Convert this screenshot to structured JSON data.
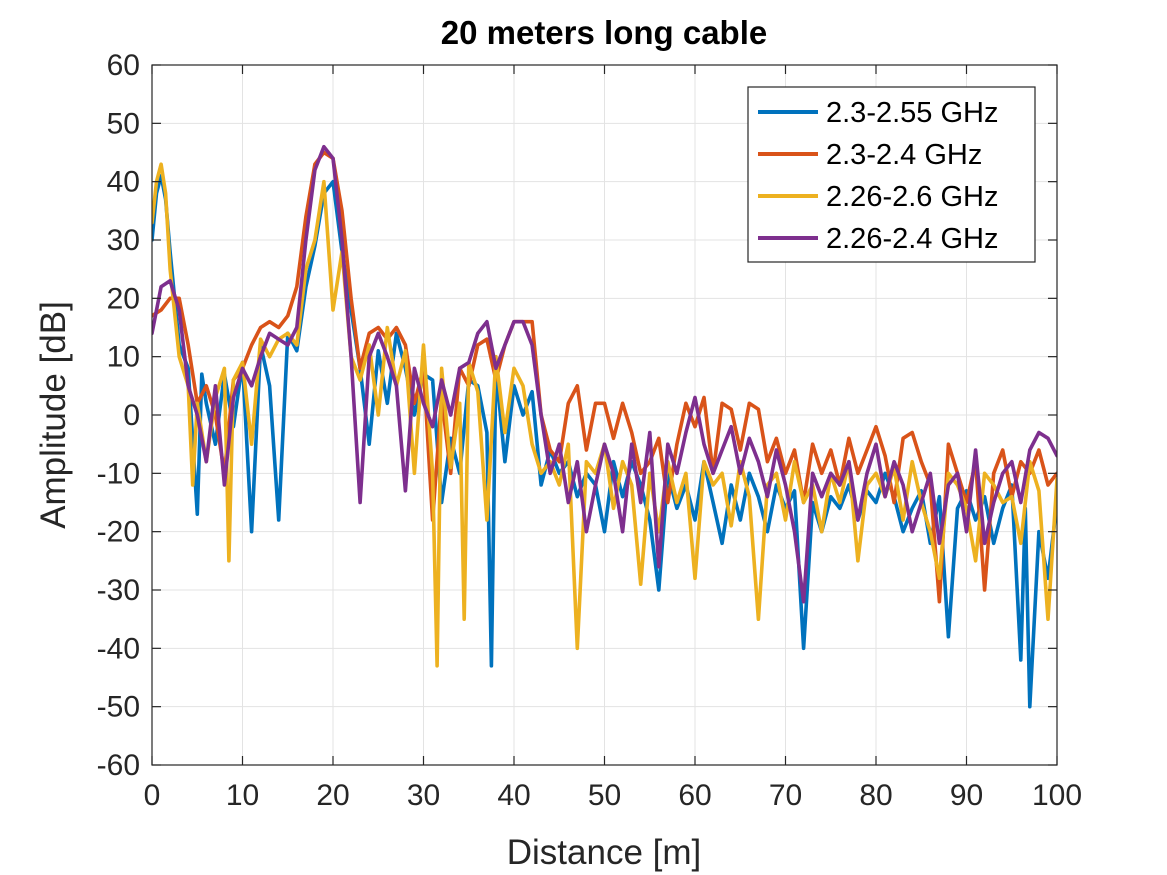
{
  "chart_data": {
    "type": "line",
    "title": "20 meters long cable",
    "xlabel": "Distance [m]",
    "ylabel": "Amplitude [dB]",
    "xlim": [
      0,
      100
    ],
    "ylim": [
      -60,
      60
    ],
    "xticks": [
      0,
      10,
      20,
      30,
      40,
      50,
      60,
      70,
      80,
      90,
      100
    ],
    "yticks": [
      -60,
      -50,
      -40,
      -30,
      -20,
      -10,
      0,
      10,
      20,
      30,
      40,
      50,
      60
    ],
    "grid": true,
    "legend_position": "top-right",
    "series": [
      {
        "name": "2.3-2.55 GHz",
        "color": "#0072BD",
        "x": [
          0,
          0.5,
          1,
          1.5,
          2,
          3,
          4,
          5,
          5.5,
          6,
          7,
          8,
          9,
          10,
          11,
          12,
          13,
          14,
          15,
          16,
          17,
          18,
          19,
          20,
          21,
          22,
          23,
          24,
          25,
          26,
          27,
          28,
          29,
          30,
          31,
          32,
          33,
          34,
          35,
          36,
          37,
          37.5,
          38,
          39,
          40,
          41,
          42,
          43,
          44,
          45,
          46,
          47,
          48,
          49,
          50,
          51,
          52,
          53,
          54,
          55,
          56,
          57,
          58,
          59,
          60,
          61,
          62,
          63,
          64,
          65,
          66,
          67,
          68,
          69,
          70,
          71,
          72,
          73,
          74,
          75,
          76,
          77,
          78,
          79,
          80,
          81,
          82,
          83,
          84,
          85,
          86,
          87,
          88,
          89,
          90,
          91,
          92,
          93,
          94,
          95,
          96,
          96.5,
          97,
          98,
          99,
          100
        ],
        "y": [
          30,
          38,
          41,
          37,
          28,
          12,
          8,
          -17,
          7,
          2,
          -5,
          7,
          -2,
          9,
          -20,
          12,
          5,
          -18,
          14,
          11,
          22,
          29,
          38,
          40,
          28,
          18,
          8,
          -5,
          11,
          2,
          14,
          8,
          0,
          7,
          6,
          -15,
          -4,
          -10,
          6,
          5,
          -3,
          -43,
          8,
          -8,
          5,
          0,
          4,
          -12,
          -6,
          -10,
          -8,
          -14,
          -10,
          -12,
          -20,
          -8,
          -14,
          -8,
          -12,
          -18,
          -30,
          -10,
          -16,
          -12,
          -18,
          -8,
          -15,
          -22,
          -12,
          -18,
          -10,
          -14,
          -20,
          -12,
          -16,
          -13,
          -40,
          -15,
          -20,
          -14,
          -16,
          -12,
          -18,
          -13,
          -15,
          -10,
          -14,
          -20,
          -16,
          -13,
          -22,
          -14,
          -38,
          -16,
          -13,
          -18,
          -14,
          -22,
          -16,
          -12,
          -42,
          -16,
          -50,
          -20,
          -28,
          -15
        ]
      },
      {
        "name": "2.3-2.4 GHz",
        "color": "#D95319",
        "x": [
          0,
          1,
          2,
          3,
          4,
          5,
          6,
          7,
          8,
          9,
          10,
          11,
          12,
          13,
          14,
          15,
          16,
          17,
          18,
          19,
          20,
          21,
          22,
          23,
          24,
          25,
          26,
          27,
          28,
          29,
          30,
          31,
          32,
          33,
          34,
          35,
          36,
          37,
          38,
          39,
          40,
          41,
          42,
          43,
          44,
          45,
          46,
          47,
          48,
          49,
          50,
          51,
          52,
          53,
          54,
          55,
          56,
          57,
          58,
          59,
          60,
          61,
          62,
          63,
          64,
          65,
          66,
          67,
          68,
          69,
          70,
          71,
          72,
          73,
          74,
          75,
          76,
          77,
          78,
          79,
          80,
          81,
          82,
          83,
          84,
          85,
          86,
          87,
          88,
          89,
          90,
          91,
          92,
          93,
          94,
          95,
          96,
          97,
          98,
          99,
          100
        ],
        "y": [
          17,
          18,
          20,
          20,
          12,
          2,
          5,
          0,
          -10,
          6,
          8,
          12,
          15,
          16,
          15,
          17,
          22,
          34,
          43,
          45,
          44,
          35,
          20,
          8,
          14,
          15,
          13,
          15,
          12,
          2,
          8,
          -18,
          3,
          -10,
          8,
          5,
          12,
          13,
          6,
          12,
          16,
          16,
          16,
          0,
          -6,
          -8,
          2,
          5,
          -6,
          2,
          2,
          -4,
          2,
          -3,
          -10,
          -8,
          -4,
          -15,
          -5,
          2,
          -2,
          3,
          -10,
          2,
          1,
          -6,
          2,
          1,
          -8,
          -4,
          -10,
          -6,
          -15,
          -5,
          -10,
          -6,
          -12,
          -4,
          -10,
          -6,
          -2,
          -7,
          -15,
          -4,
          -3,
          -8,
          -12,
          -32,
          -5,
          -10,
          -15,
          -8,
          -30,
          -10,
          -6,
          -14,
          -8,
          -10,
          -6,
          -12,
          -10
        ]
      },
      {
        "name": "2.26-2.6 GHz",
        "color": "#EDB120",
        "x": [
          0,
          0.5,
          1,
          1.5,
          2,
          3,
          4,
          4.5,
          5,
          6,
          7,
          8,
          8.5,
          9,
          10,
          11,
          12,
          13,
          14,
          15,
          16,
          17,
          18,
          19,
          20,
          21,
          22,
          23,
          24,
          25,
          26,
          27,
          28,
          29,
          30,
          31,
          31.5,
          32,
          33,
          34,
          34.5,
          35,
          36,
          37,
          38,
          39,
          40,
          41,
          42,
          43,
          44,
          45,
          46,
          47,
          48,
          49,
          50,
          51,
          52,
          53,
          54,
          55,
          56,
          57,
          58,
          59,
          60,
          61,
          62,
          63,
          64,
          65,
          66,
          67,
          68,
          69,
          70,
          71,
          72,
          73,
          74,
          75,
          76,
          77,
          78,
          79,
          80,
          81,
          82,
          83,
          84,
          85,
          86,
          87,
          88,
          89,
          90,
          91,
          92,
          93,
          94,
          95,
          96,
          97,
          98,
          99,
          100
        ],
        "y": [
          33,
          40,
          43,
          38,
          25,
          10,
          5,
          -12,
          2,
          -8,
          3,
          8,
          -25,
          6,
          9,
          -5,
          13,
          10,
          13,
          14,
          12,
          25,
          30,
          40,
          18,
          28,
          10,
          6,
          12,
          0,
          15,
          5,
          11,
          -10,
          12,
          -10,
          -43,
          8,
          -9,
          2,
          -35,
          9,
          4,
          -18,
          10,
          -3,
          8,
          5,
          -5,
          -10,
          -8,
          -12,
          -5,
          -40,
          -8,
          -10,
          -5,
          -16,
          -8,
          -12,
          -29,
          -10,
          -20,
          -8,
          -15,
          -10,
          -28,
          -8,
          -12,
          -10,
          -19,
          -8,
          -14,
          -35,
          -12,
          -10,
          -18,
          -8,
          -15,
          -12,
          -20,
          -10,
          -15,
          -8,
          -25,
          -12,
          -10,
          -14,
          -9,
          -18,
          -8,
          -15,
          -20,
          -28,
          -10,
          -12,
          -16,
          -25,
          -10,
          -12,
          -15,
          -14,
          -22,
          -8,
          -13,
          -35,
          -11
        ]
      },
      {
        "name": "2.26-2.4 GHz",
        "color": "#7E2F8E",
        "x": [
          0,
          1,
          2,
          3,
          4,
          5,
          6,
          7,
          8,
          9,
          10,
          11,
          12,
          13,
          14,
          15,
          16,
          17,
          18,
          19,
          20,
          21,
          22,
          23,
          24,
          25,
          26,
          27,
          28,
          29,
          30,
          31,
          32,
          33,
          34,
          35,
          36,
          37,
          38,
          39,
          40,
          41,
          42,
          43,
          44,
          45,
          46,
          47,
          48,
          49,
          50,
          51,
          52,
          53,
          54,
          55,
          56,
          57,
          58,
          59,
          60,
          61,
          62,
          63,
          64,
          65,
          66,
          67,
          68,
          69,
          70,
          71,
          72,
          73,
          74,
          75,
          76,
          77,
          78,
          79,
          80,
          81,
          82,
          83,
          84,
          85,
          86,
          87,
          88,
          89,
          90,
          91,
          92,
          93,
          94,
          95,
          96,
          97,
          98,
          99,
          100
        ],
        "y": [
          14,
          22,
          23,
          18,
          5,
          0,
          -8,
          5,
          -12,
          3,
          8,
          5,
          10,
          14,
          13,
          12,
          15,
          30,
          42,
          46,
          44,
          30,
          10,
          -15,
          10,
          14,
          10,
          5,
          -13,
          8,
          2,
          -2,
          6,
          0,
          8,
          9,
          14,
          16,
          8,
          12,
          16,
          16,
          12,
          0,
          -10,
          -5,
          -15,
          -8,
          -20,
          -12,
          -5,
          -10,
          -20,
          -5,
          -15,
          -3,
          -26,
          -5,
          -10,
          -3,
          3,
          -5,
          -10,
          -6,
          -2,
          -10,
          -4,
          -8,
          -14,
          -6,
          -12,
          -20,
          -32,
          -10,
          -14,
          -10,
          -12,
          -8,
          -18,
          -10,
          -5,
          -14,
          -8,
          -12,
          -20,
          -15,
          -10,
          -22,
          -12,
          -10,
          -20,
          -6,
          -22,
          -15,
          -10,
          -8,
          -15,
          -6,
          -3,
          -4,
          -7
        ]
      }
    ]
  }
}
